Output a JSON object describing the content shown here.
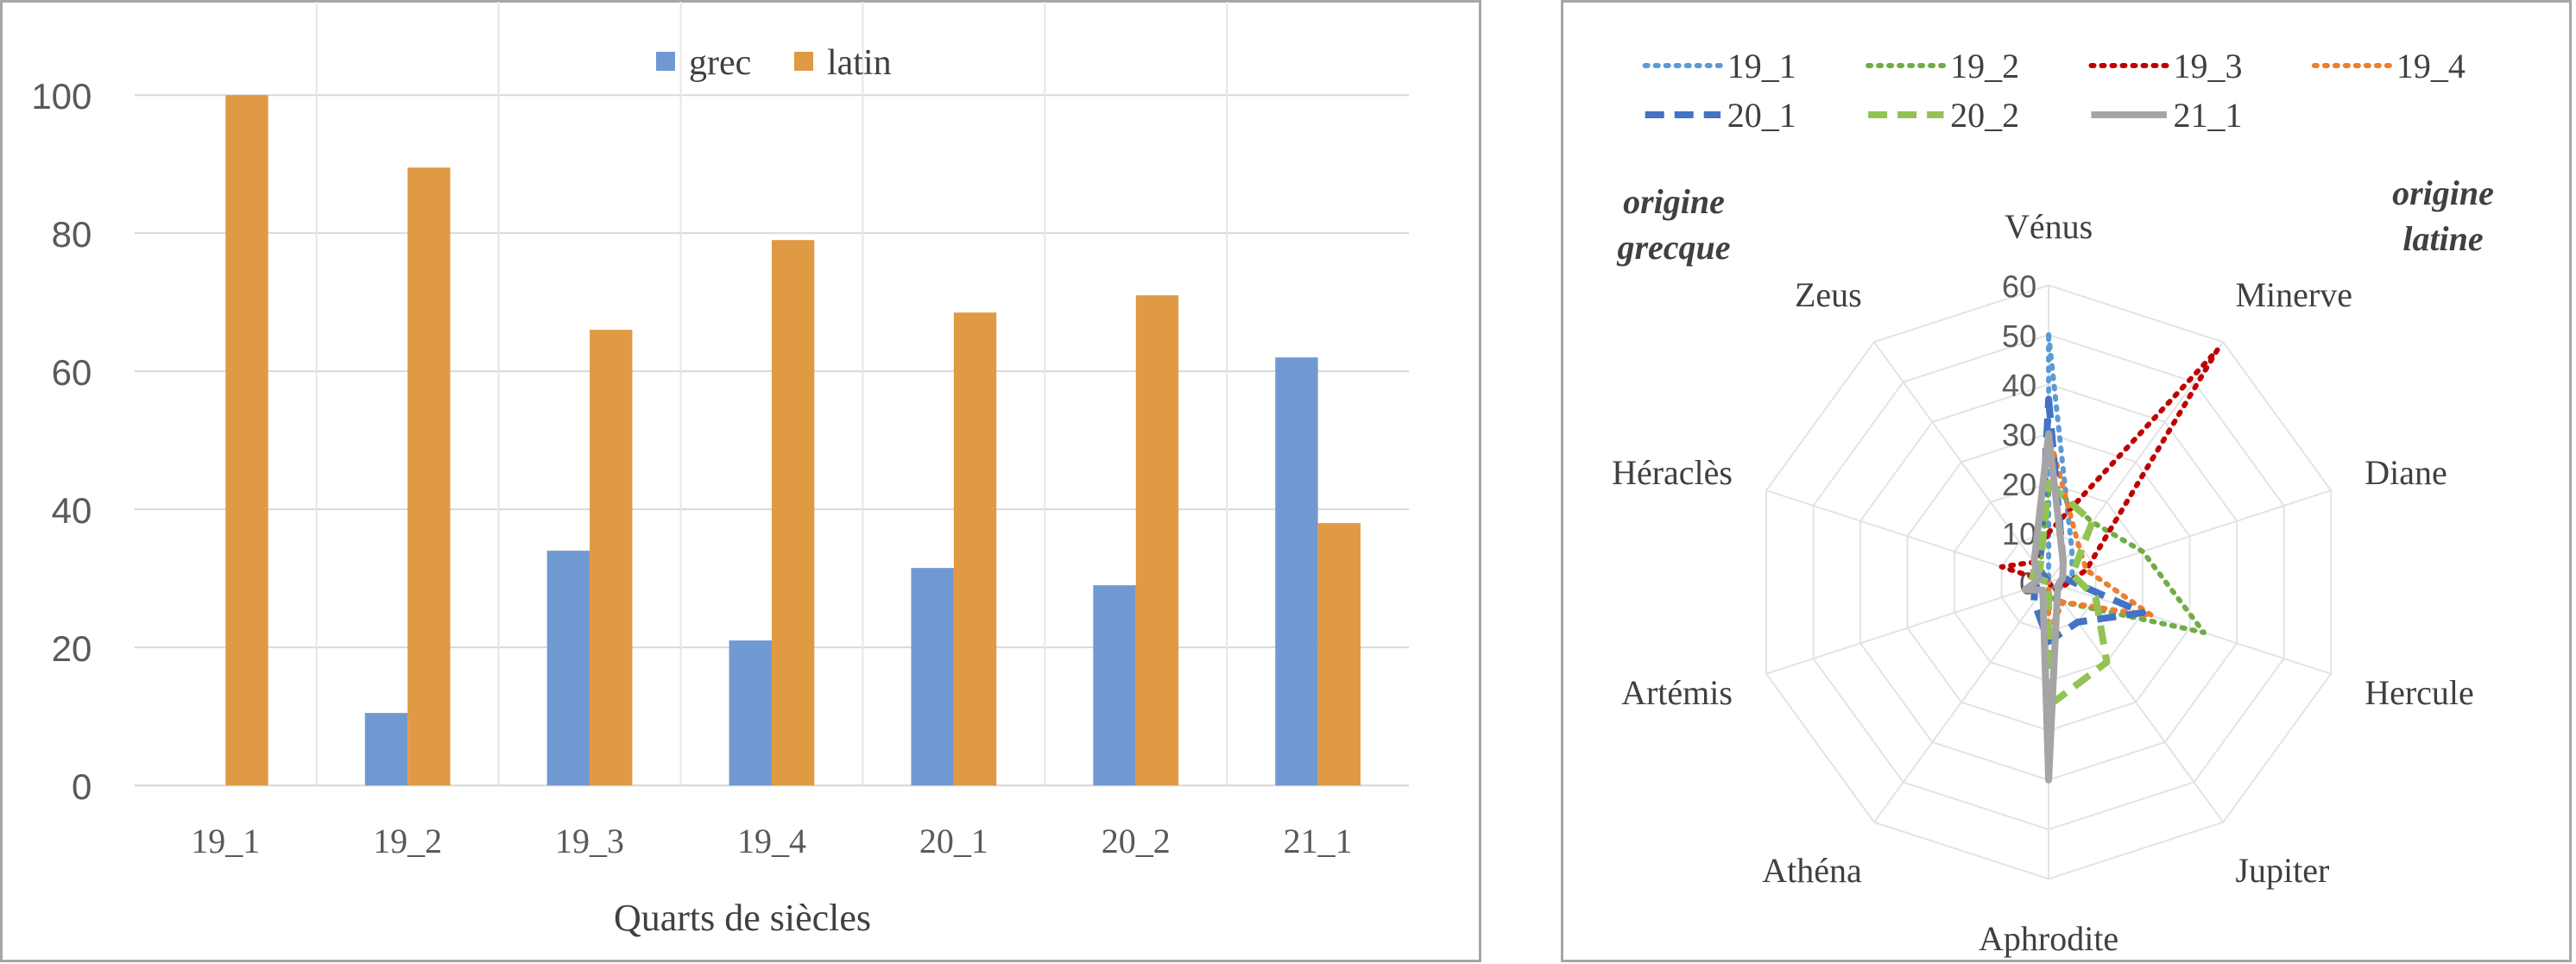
{
  "chart_data": [
    {
      "type": "bar",
      "xlabel": "Quarts de siècles",
      "ylabel": "",
      "ylim": [
        0,
        100
      ],
      "yticks": [
        0,
        20,
        40,
        60,
        80,
        100
      ],
      "grid": true,
      "legend_position": "top-center",
      "categories": [
        "19_1",
        "19_2",
        "19_3",
        "19_4",
        "20_1",
        "20_2",
        "21_1"
      ],
      "series": [
        {
          "name": "grec",
          "color": "#7199d1",
          "values": [
            0,
            10.5,
            34,
            21,
            31.5,
            29,
            62
          ]
        },
        {
          "name": "latin",
          "color": "#e09a43",
          "values": [
            100,
            89.5,
            66,
            79,
            68.5,
            71,
            38
          ]
        }
      ]
    },
    {
      "type": "radar",
      "rlim": [
        0,
        60
      ],
      "rticks": [
        0,
        10,
        20,
        30,
        40,
        50,
        60
      ],
      "legend_position": "top",
      "annotations": {
        "left": [
          "origine",
          "grecque"
        ],
        "right": [
          "origine",
          "latine"
        ]
      },
      "axes": [
        "Vénus",
        "Minerve",
        "Diane",
        "Hercule",
        "Jupiter",
        "Aphrodite",
        "Athéna",
        "Artémis",
        "Héraclès",
        "Zeus"
      ],
      "series": [
        {
          "name": "19_1",
          "color": "#5b9bd5",
          "style": "dotted",
          "values": [
            50,
            8,
            5,
            3,
            2,
            0,
            0,
            0,
            0,
            0
          ]
        },
        {
          "name": "19_2",
          "color": "#70ad47",
          "style": "dotted",
          "values": [
            20,
            15,
            20,
            33,
            5,
            3,
            0,
            0,
            2,
            3
          ]
        },
        {
          "name": "19_3",
          "color": "#c00000",
          "style": "dotted",
          "values": [
            10,
            58,
            8,
            3,
            2,
            0,
            0,
            0,
            10,
            5
          ]
        },
        {
          "name": "19_4",
          "color": "#ed7d31",
          "style": "dotted",
          "values": [
            30,
            10,
            8,
            22,
            5,
            10,
            0,
            0,
            0,
            5
          ]
        },
        {
          "name": "20_1",
          "color": "#4472c4",
          "style": "dashed",
          "values": [
            37,
            5,
            3,
            20,
            10,
            12,
            5,
            3,
            0,
            3
          ]
        },
        {
          "name": "20_2",
          "color": "#92c353",
          "style": "dashed",
          "values": [
            20,
            15,
            5,
            10,
            20,
            25,
            0,
            0,
            5,
            3
          ]
        },
        {
          "name": "21_1",
          "color": "#a5a5a5",
          "style": "solid",
          "values": [
            30,
            5,
            3,
            2,
            3,
            40,
            2,
            5,
            2,
            5
          ]
        }
      ]
    }
  ]
}
